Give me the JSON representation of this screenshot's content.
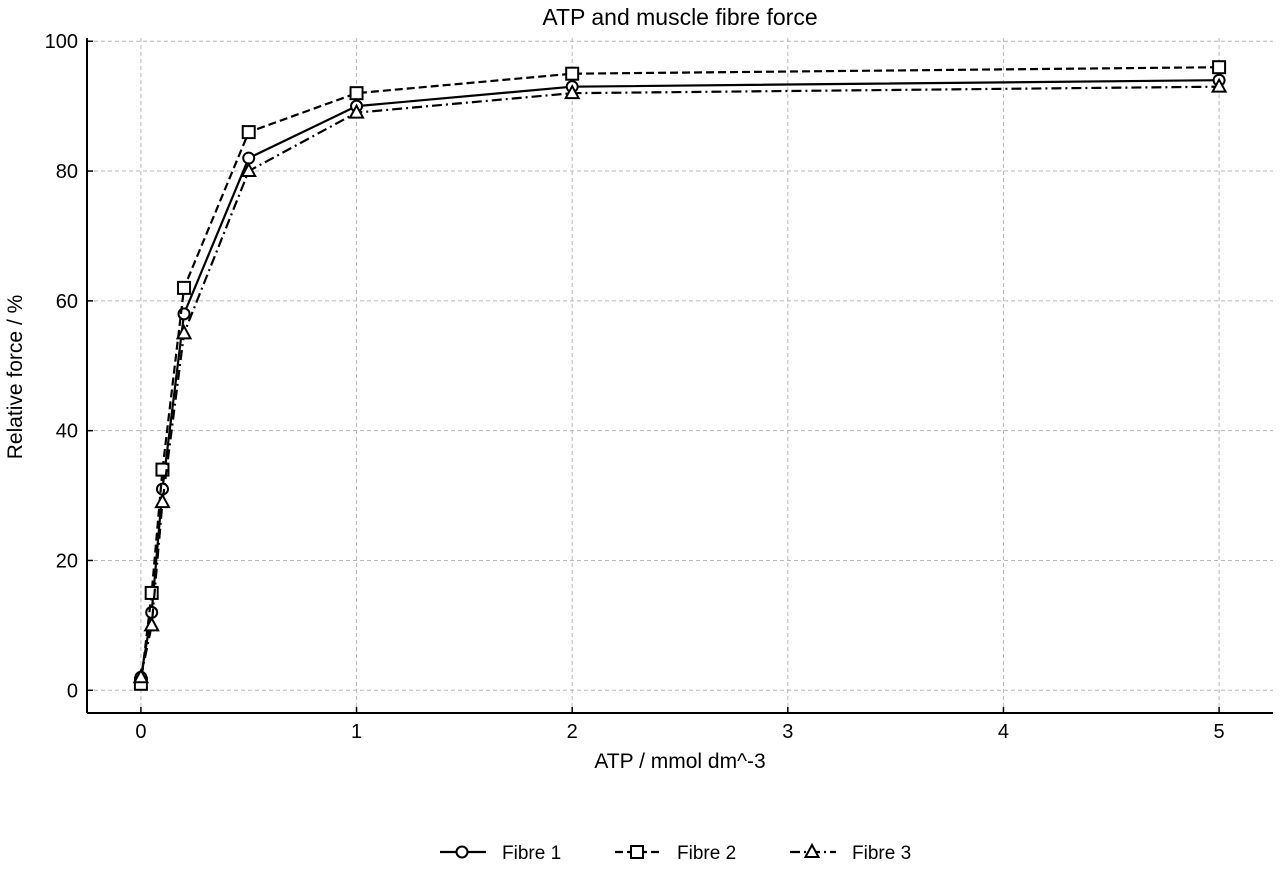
{
  "chart_data": {
    "type": "line",
    "title": "ATP and muscle fibre force",
    "xlabel": "ATP / mmol dm^-3",
    "ylabel": "Relative force / %",
    "x": [
      0,
      0.05,
      0.1,
      0.2,
      0.5,
      1,
      2,
      5
    ],
    "x_tick_values": [
      0,
      1,
      2,
      3,
      4,
      5
    ],
    "x_tick_labels": [
      "0",
      "1",
      "2",
      "3",
      "4",
      "5"
    ],
    "y_ticks": [
      0,
      20,
      40,
      60,
      80,
      100
    ],
    "xlim": [
      -0.25,
      5.25
    ],
    "ylim": [
      -3.5,
      100.5
    ],
    "grid": true,
    "legend_position": "bottom-center",
    "series": [
      {
        "name": "Fibre 1",
        "values": [
          2,
          12,
          31,
          58,
          82,
          90,
          93,
          94
        ],
        "marker": "circle",
        "dash": "solid"
      },
      {
        "name": "Fibre 2",
        "values": [
          1,
          15,
          34,
          62,
          86,
          92,
          95,
          96
        ],
        "marker": "square",
        "dash": "dashed"
      },
      {
        "name": "Fibre 3",
        "values": [
          2,
          10,
          29,
          55,
          80,
          89,
          92,
          93
        ],
        "marker": "triangle",
        "dash": "dashdot"
      }
    ]
  }
}
